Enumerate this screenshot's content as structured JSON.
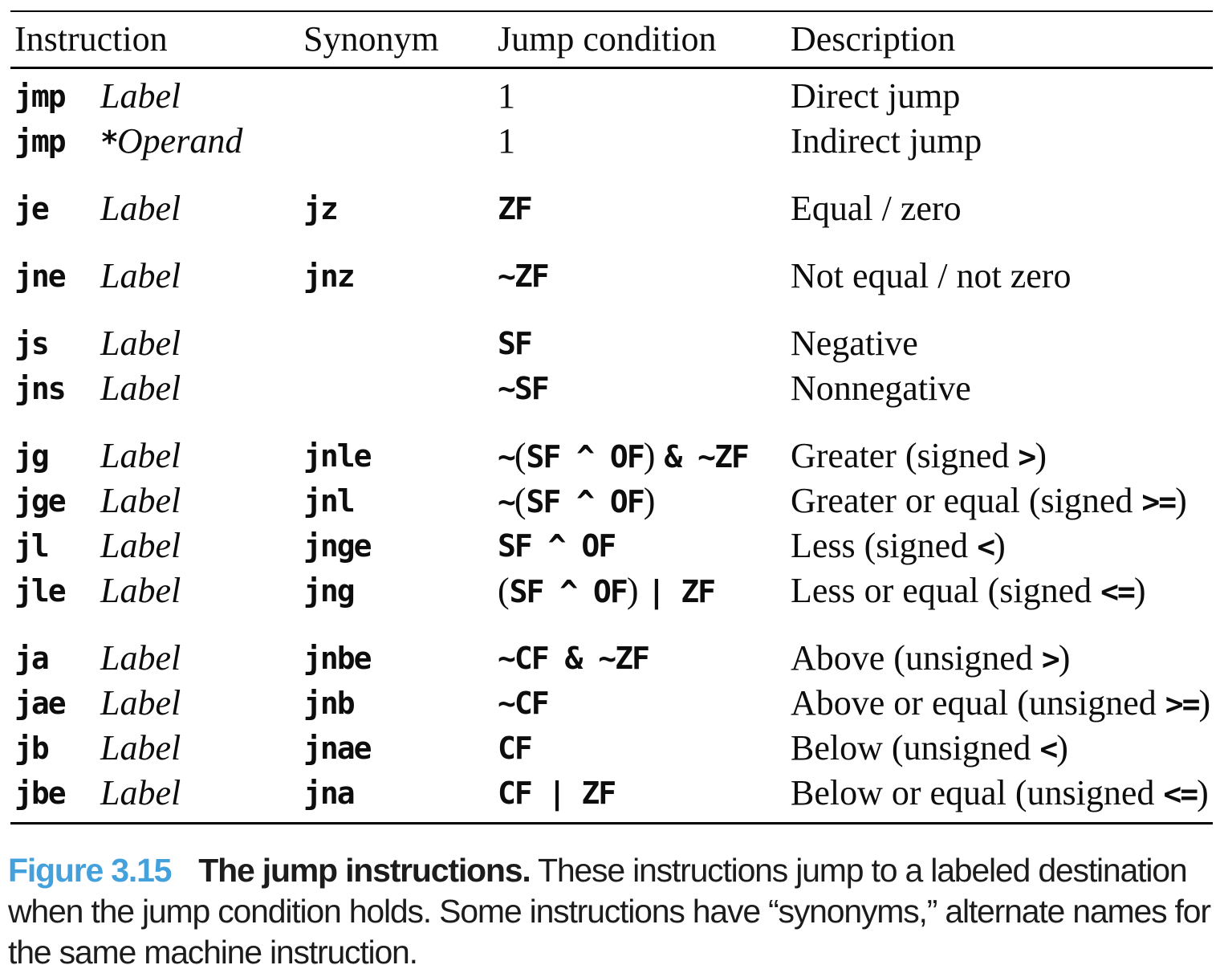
{
  "table": {
    "headers": [
      {
        "label": "Instruction"
      },
      {
        "label": "Synonym"
      },
      {
        "label": "Jump condition"
      },
      {
        "label": "Description"
      }
    ],
    "groups": [
      {
        "rows": [
          {
            "instruction": "jmp",
            "operand": [
              {
                "k": "i",
                "t": "Label"
              }
            ],
            "synonym": "",
            "condition": [
              {
                "k": "s",
                "t": "1"
              }
            ],
            "description": [
              {
                "k": "s",
                "t": "Direct jump"
              }
            ]
          },
          {
            "instruction": "jmp",
            "operand": [
              {
                "k": "m",
                "t": "*"
              },
              {
                "k": "i",
                "t": "Operand"
              }
            ],
            "synonym": "",
            "condition": [
              {
                "k": "s",
                "t": "1"
              }
            ],
            "description": [
              {
                "k": "s",
                "t": "Indirect jump"
              }
            ]
          }
        ]
      },
      {
        "rows": [
          {
            "instruction": "je",
            "operand": [
              {
                "k": "i",
                "t": "Label"
              }
            ],
            "synonym": "jz",
            "condition": [
              {
                "k": "m",
                "t": "ZF"
              }
            ],
            "description": [
              {
                "k": "s",
                "t": "Equal / zero"
              }
            ]
          }
        ]
      },
      {
        "rows": [
          {
            "instruction": "jne",
            "operand": [
              {
                "k": "i",
                "t": "Label"
              }
            ],
            "synonym": "jnz",
            "condition": [
              {
                "k": "m",
                "t": "~ZF"
              }
            ],
            "description": [
              {
                "k": "s",
                "t": "Not equal / not zero"
              }
            ]
          }
        ]
      },
      {
        "rows": [
          {
            "instruction": "js",
            "operand": [
              {
                "k": "i",
                "t": "Label"
              }
            ],
            "synonym": "",
            "condition": [
              {
                "k": "m",
                "t": "SF"
              }
            ],
            "description": [
              {
                "k": "s",
                "t": "Negative"
              }
            ]
          },
          {
            "instruction": "jns",
            "operand": [
              {
                "k": "i",
                "t": "Label"
              }
            ],
            "synonym": "",
            "condition": [
              {
                "k": "m",
                "t": "~SF"
              }
            ],
            "description": [
              {
                "k": "s",
                "t": "Nonnegative"
              }
            ]
          }
        ]
      },
      {
        "rows": [
          {
            "instruction": "jg",
            "operand": [
              {
                "k": "i",
                "t": "Label"
              }
            ],
            "synonym": "jnle",
            "condition": [
              {
                "k": "m",
                "t": "~"
              },
              {
                "k": "s",
                "t": "("
              },
              {
                "k": "m",
                "t": "SF ^ OF"
              },
              {
                "k": "s",
                "t": ") "
              },
              {
                "k": "m",
                "t": "& ~ZF"
              }
            ],
            "description": [
              {
                "k": "s",
                "t": "Greater (signed "
              },
              {
                "k": "m",
                "t": ">"
              },
              {
                "k": "s",
                "t": ")"
              }
            ]
          },
          {
            "instruction": "jge",
            "operand": [
              {
                "k": "i",
                "t": "Label"
              }
            ],
            "synonym": "jnl",
            "condition": [
              {
                "k": "m",
                "t": "~"
              },
              {
                "k": "s",
                "t": "("
              },
              {
                "k": "m",
                "t": "SF ^ OF"
              },
              {
                "k": "s",
                "t": ")"
              }
            ],
            "description": [
              {
                "k": "s",
                "t": "Greater or equal (signed "
              },
              {
                "k": "m",
                "t": ">="
              },
              {
                "k": "s",
                "t": ")"
              }
            ]
          },
          {
            "instruction": "jl",
            "operand": [
              {
                "k": "i",
                "t": "Label"
              }
            ],
            "synonym": "jnge",
            "condition": [
              {
                "k": "m",
                "t": "SF ^ OF"
              }
            ],
            "description": [
              {
                "k": "s",
                "t": "Less (signed "
              },
              {
                "k": "m",
                "t": "<"
              },
              {
                "k": "s",
                "t": ")"
              }
            ]
          },
          {
            "instruction": "jle",
            "operand": [
              {
                "k": "i",
                "t": "Label"
              }
            ],
            "synonym": "jng",
            "condition": [
              {
                "k": "s",
                "t": "("
              },
              {
                "k": "m",
                "t": "SF ^ OF"
              },
              {
                "k": "s",
                "t": ") "
              },
              {
                "k": "m",
                "t": "| ZF"
              }
            ],
            "description": [
              {
                "k": "s",
                "t": "Less or equal (signed "
              },
              {
                "k": "m",
                "t": "<="
              },
              {
                "k": "s",
                "t": ")"
              }
            ]
          }
        ]
      },
      {
        "rows": [
          {
            "instruction": "ja",
            "operand": [
              {
                "k": "i",
                "t": "Label"
              }
            ],
            "synonym": "jnbe",
            "condition": [
              {
                "k": "m",
                "t": "~CF & ~ZF"
              }
            ],
            "description": [
              {
                "k": "s",
                "t": "Above (unsigned "
              },
              {
                "k": "m",
                "t": ">"
              },
              {
                "k": "s",
                "t": ")"
              }
            ]
          },
          {
            "instruction": "jae",
            "operand": [
              {
                "k": "i",
                "t": "Label"
              }
            ],
            "synonym": "jnb",
            "condition": [
              {
                "k": "m",
                "t": "~CF"
              }
            ],
            "description": [
              {
                "k": "s",
                "t": "Above or equal (unsigned "
              },
              {
                "k": "m",
                "t": ">="
              },
              {
                "k": "s",
                "t": ")"
              }
            ]
          },
          {
            "instruction": "jb",
            "operand": [
              {
                "k": "i",
                "t": "Label"
              }
            ],
            "synonym": "jnae",
            "condition": [
              {
                "k": "m",
                "t": "CF"
              }
            ],
            "description": [
              {
                "k": "s",
                "t": "Below (unsigned "
              },
              {
                "k": "m",
                "t": "<"
              },
              {
                "k": "s",
                "t": ")"
              }
            ]
          },
          {
            "instruction": "jbe",
            "operand": [
              {
                "k": "i",
                "t": "Label"
              }
            ],
            "synonym": "jna",
            "condition": [
              {
                "k": "m",
                "t": "CF | ZF"
              }
            ],
            "description": [
              {
                "k": "s",
                "t": "Below or equal (unsigned "
              },
              {
                "k": "m",
                "t": "<="
              },
              {
                "k": "s",
                "t": ")"
              }
            ]
          }
        ]
      }
    ]
  },
  "caption": {
    "figure_label": "Figure 3.15",
    "title": "The jump instructions.",
    "body": "These instructions jump to a labeled destination when the jump condition holds. Some instructions have “synonyms,” alternate names for the same machine instruction."
  },
  "colors": {
    "figure_label": "#45a1dc",
    "text": "#0d0d0d"
  }
}
